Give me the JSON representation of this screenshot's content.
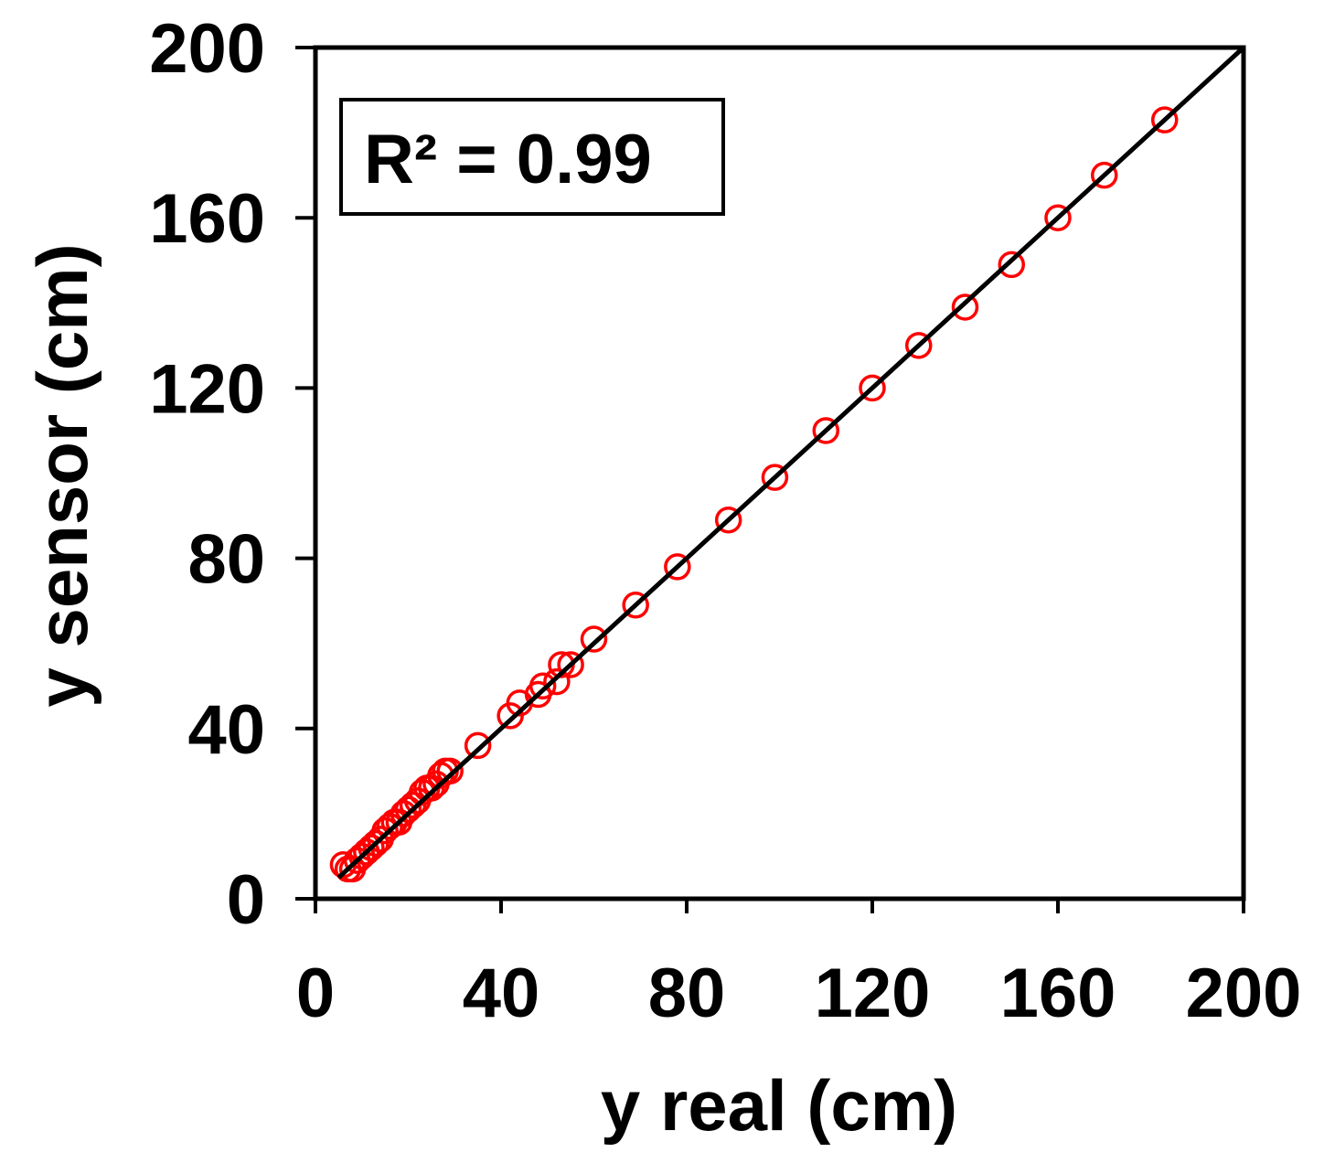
{
  "chart_data": {
    "type": "scatter",
    "xlabel": "y real (cm)",
    "ylabel": "y sensor (cm)",
    "xlim": [
      0,
      200
    ],
    "ylim": [
      0,
      200
    ],
    "x_ticks": [
      0,
      40,
      80,
      120,
      160,
      200
    ],
    "y_ticks": [
      0,
      40,
      80,
      120,
      160,
      200
    ],
    "grid": false,
    "annotation": "R² = 0.99",
    "colors": {
      "points": "#ff0000",
      "fit_line": "#000000",
      "axes": "#000000"
    },
    "series": [
      {
        "marker": "open-circle",
        "points": [
          [
            6,
            8
          ],
          [
            7,
            7
          ],
          [
            8,
            7
          ],
          [
            9,
            9
          ],
          [
            10,
            10
          ],
          [
            11,
            11
          ],
          [
            12,
            12
          ],
          [
            13,
            13
          ],
          [
            14,
            14
          ],
          [
            15,
            16
          ],
          [
            16,
            17
          ],
          [
            17,
            18
          ],
          [
            18,
            18
          ],
          [
            19,
            20
          ],
          [
            20,
            21
          ],
          [
            21,
            22
          ],
          [
            22,
            23
          ],
          [
            23,
            25
          ],
          [
            24,
            26
          ],
          [
            25,
            26
          ],
          [
            26,
            27
          ],
          [
            27,
            29
          ],
          [
            28,
            30
          ],
          [
            29,
            30
          ],
          [
            35,
            36
          ],
          [
            42,
            43
          ],
          [
            44,
            46
          ],
          [
            48,
            48
          ],
          [
            49,
            50
          ],
          [
            52,
            51
          ],
          [
            53,
            55
          ],
          [
            55,
            55
          ],
          [
            60,
            61
          ],
          [
            69,
            69
          ],
          [
            78,
            78
          ],
          [
            89,
            89
          ],
          [
            99,
            99
          ],
          [
            110,
            110
          ],
          [
            120,
            120
          ],
          [
            130,
            130
          ],
          [
            140,
            139
          ],
          [
            150,
            149
          ],
          [
            160,
            160
          ],
          [
            170,
            170
          ],
          [
            183,
            183
          ]
        ]
      }
    ],
    "fit_line": {
      "from": [
        5,
        5
      ],
      "to": [
        200,
        200
      ]
    }
  }
}
